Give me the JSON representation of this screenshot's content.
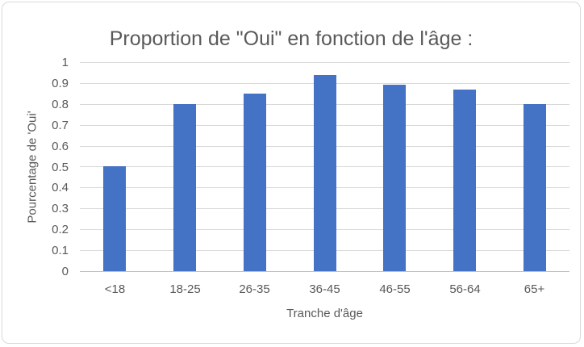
{
  "chart_data": {
    "type": "bar",
    "title": "Proportion de \"Oui\" en fonction de l'âge :",
    "xlabel": "Tranche d'âge",
    "ylabel": "Pourcentage de 'Oui'",
    "categories": [
      "<18",
      "18-25",
      "26-35",
      "36-45",
      "46-55",
      "56-64",
      "65+"
    ],
    "values": [
      0.5,
      0.8,
      0.85,
      0.94,
      0.89,
      0.87,
      0.8
    ],
    "ylim": [
      0,
      1
    ],
    "ytick_step": 0.1,
    "ytick_labels": [
      "0",
      "0.1",
      "0.2",
      "0.3",
      "0.4",
      "0.5",
      "0.6",
      "0.7",
      "0.8",
      "0.9",
      "1"
    ],
    "grid": true,
    "legend": "none",
    "bar_color": "#4472c4",
    "gridline_color": "#d9d9d9",
    "axis_line_color": "#bfbfbf",
    "text_color": "#595959"
  }
}
